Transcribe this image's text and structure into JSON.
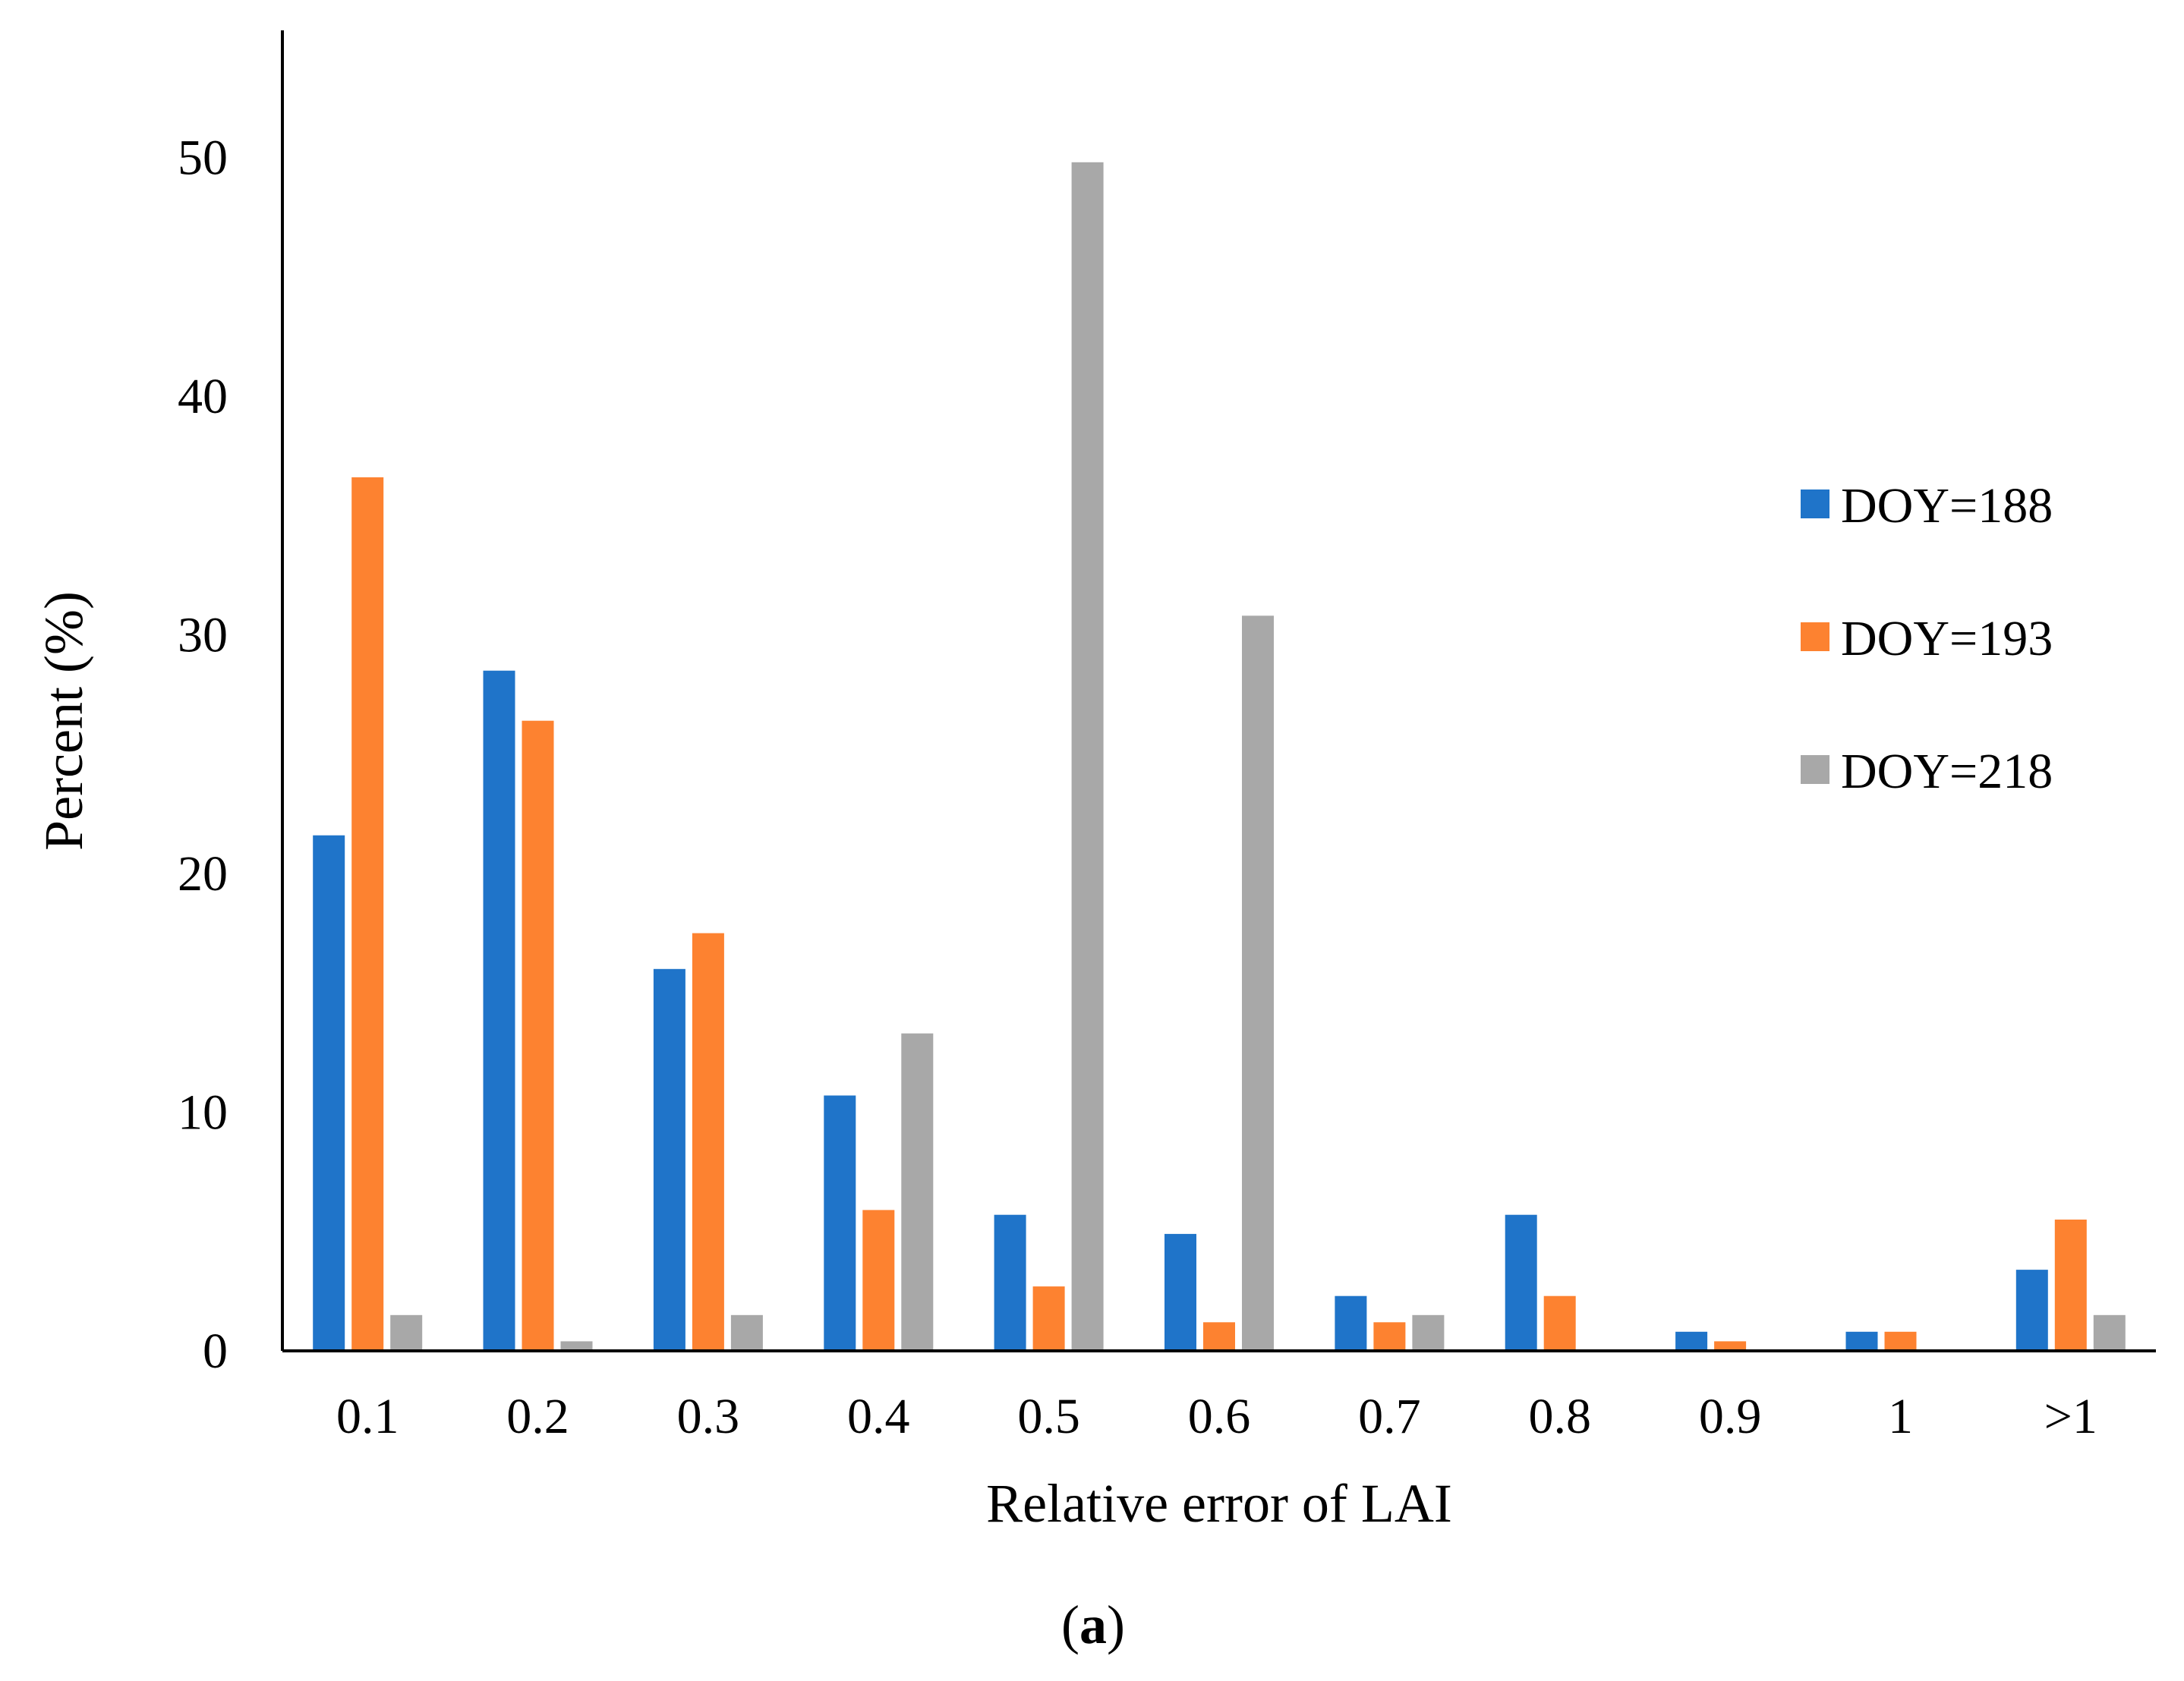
{
  "chart_data": {
    "type": "bar",
    "title": "",
    "xlabel": "Relative error of LAI",
    "ylabel": "Percent (%)",
    "categories": [
      "0.1",
      "0.2",
      "0.3",
      "0.4",
      "0.5",
      "0.6",
      "0.7",
      "0.8",
      "0.9",
      "1",
      ">1"
    ],
    "series": [
      {
        "name": "DOY=188",
        "color": "#1f74c9",
        "values": [
          21.6,
          28.5,
          16.0,
          10.7,
          5.7,
          4.9,
          2.3,
          5.7,
          0.8,
          0.8,
          3.4
        ]
      },
      {
        "name": "DOY=193",
        "color": "#fd8230",
        "values": [
          36.6,
          26.4,
          17.5,
          5.9,
          2.7,
          1.2,
          1.2,
          2.3,
          0.4,
          0.8,
          5.5
        ]
      },
      {
        "name": "DOY=218",
        "color": "#a8a8a8",
        "values": [
          1.5,
          0.4,
          1.5,
          13.3,
          49.8,
          30.8,
          1.5,
          0.0,
          0.0,
          0.0,
          1.5
        ]
      }
    ],
    "ylim": [
      0,
      55
    ],
    "yticks": [
      0,
      10,
      20,
      30,
      40,
      50
    ],
    "grid": false,
    "legend_position": "right"
  },
  "caption": {
    "open": "(",
    "letter": "a",
    "close": ")"
  }
}
